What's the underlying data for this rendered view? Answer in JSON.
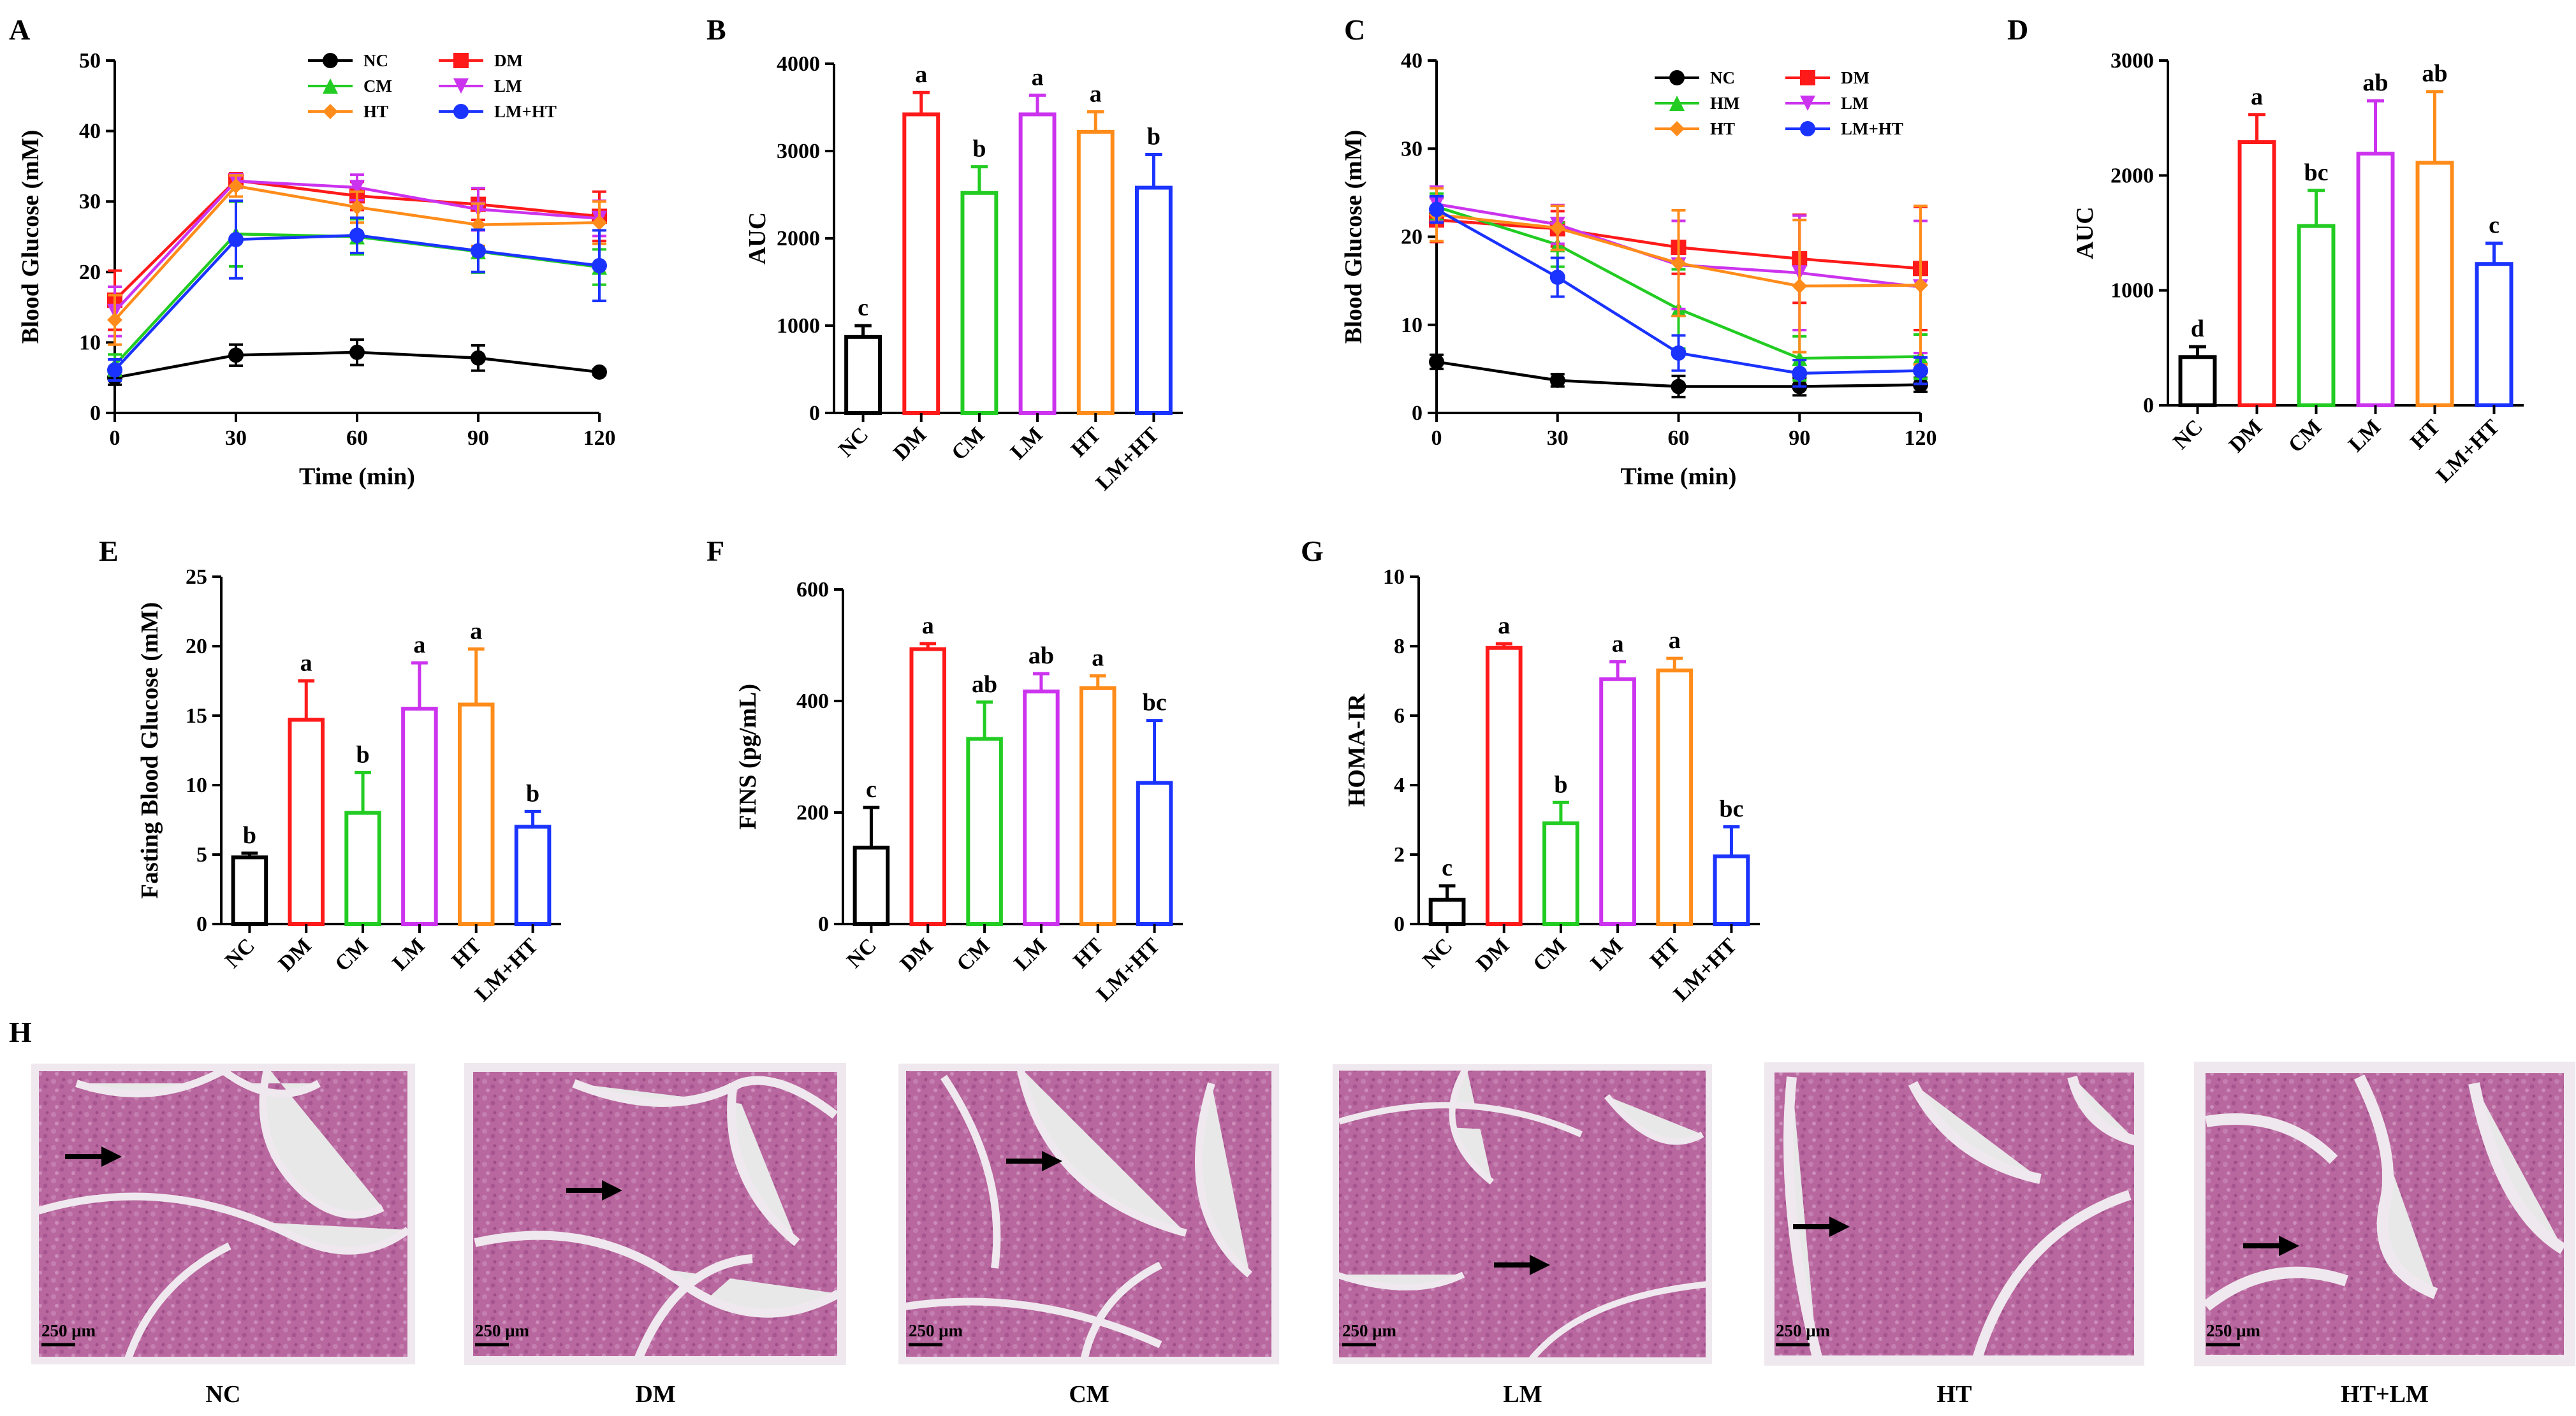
{
  "colors": {
    "NC": "#000000",
    "DM": "#ff1a1a",
    "CM": "#22cc22",
    "HM": "#22cc22",
    "LM": "#cc33ee",
    "HT": "#ff8c1a",
    "LM+HT": "#1a33ff",
    "tissue_bg": "#e8e8e8",
    "tissue": "#b0609a"
  },
  "chart_data": [
    {
      "panel": "A",
      "type": "line",
      "xlabel": "Time (min)",
      "ylabel": "Blood Glucose (mM)",
      "x": [
        0,
        30,
        60,
        90,
        120
      ],
      "xticks": [
        0,
        30,
        60,
        90,
        120
      ],
      "ylim": [
        0,
        50
      ],
      "yticks": [
        0,
        10,
        20,
        30,
        40,
        50
      ],
      "legend": "top-right",
      "series": [
        {
          "name": "NC",
          "key": "NC",
          "marker": "circle",
          "values": [
            5.0,
            8.2,
            8.6,
            7.8,
            5.8
          ],
          "err": [
            1.0,
            1.5,
            1.8,
            1.8,
            0.4
          ]
        },
        {
          "name": "DM",
          "key": "DM",
          "marker": "square",
          "values": [
            16.0,
            33.0,
            30.8,
            29.6,
            27.9
          ],
          "err": [
            4.2,
            1.0,
            2.0,
            2.2,
            3.5
          ]
        },
        {
          "name": "CM",
          "key": "CM",
          "marker": "triangle",
          "values": [
            6.8,
            25.4,
            25.0,
            22.9,
            20.7
          ],
          "err": [
            1.5,
            4.6,
            2.5,
            3.0,
            2.5
          ]
        },
        {
          "name": "LM",
          "key": "LM",
          "marker": "triangle-down",
          "values": [
            14.4,
            32.9,
            32.0,
            28.9,
            27.6
          ],
          "err": [
            3.5,
            1.0,
            1.8,
            3.0,
            2.5
          ]
        },
        {
          "name": "HT",
          "key": "HT",
          "marker": "diamond",
          "values": [
            13.2,
            32.2,
            29.2,
            26.7,
            27.0
          ],
          "err": [
            3.5,
            1.5,
            2.2,
            3.0,
            3.0
          ]
        },
        {
          "name": "LM+HT",
          "key": "LM+HT",
          "marker": "circle",
          "values": [
            6.1,
            24.6,
            25.2,
            23.0,
            20.9
          ],
          "err": [
            1.5,
            5.5,
            2.5,
            3.0,
            5.0
          ]
        }
      ]
    },
    {
      "panel": "B",
      "type": "bar",
      "ylabel": "AUC",
      "categories": [
        "NC",
        "DM",
        "CM",
        "LM",
        "HT",
        "LM+HT"
      ],
      "values": [
        870,
        3420,
        2520,
        3420,
        3220,
        2580
      ],
      "err": [
        130,
        250,
        300,
        220,
        230,
        380
      ],
      "sig": [
        "c",
        "a",
        "b",
        "a",
        "a",
        "b"
      ],
      "ylim": [
        0,
        4000
      ],
      "yticks": [
        0,
        1000,
        2000,
        3000,
        4000
      ]
    },
    {
      "panel": "C",
      "type": "line",
      "xlabel": "Time (min)",
      "ylabel": "Blood Glucose (mM)",
      "x": [
        0,
        30,
        60,
        90,
        120
      ],
      "xticks": [
        0,
        30,
        60,
        90,
        120
      ],
      "ylim": [
        0,
        40
      ],
      "yticks": [
        0,
        10,
        20,
        30,
        40
      ],
      "legend": "top-right",
      "series": [
        {
          "name": "NC",
          "key": "NC",
          "marker": "circle",
          "values": [
            5.8,
            3.7,
            3.0,
            3.0,
            3.2
          ],
          "err": [
            0.8,
            0.7,
            1.2,
            1.0,
            0.8
          ]
        },
        {
          "name": "DM",
          "key": "DM",
          "marker": "square",
          "values": [
            21.9,
            20.9,
            18.8,
            17.5,
            16.4
          ],
          "err": [
            2.5,
            2.0,
            3.0,
            5.0,
            7.0
          ]
        },
        {
          "name": "HM",
          "key": "HM",
          "marker": "triangle",
          "values": [
            23.4,
            19.1,
            11.8,
            6.2,
            6.4
          ],
          "err": [
            1.5,
            2.5,
            4.5,
            2.5,
            2.5
          ]
        },
        {
          "name": "LM",
          "key": "LM",
          "marker": "triangle-down",
          "values": [
            23.7,
            21.4,
            16.8,
            15.9,
            14.3
          ],
          "err": [
            2.0,
            2.2,
            5.0,
            6.5,
            7.5
          ]
        },
        {
          "name": "HT",
          "key": "HT",
          "marker": "diamond",
          "values": [
            22.5,
            21.0,
            17.0,
            14.4,
            14.5
          ],
          "err": [
            3.0,
            2.5,
            6.0,
            7.5,
            9.0
          ]
        },
        {
          "name": "LM+HT",
          "key": "LM+HT",
          "marker": "circle",
          "values": [
            23.1,
            15.4,
            6.8,
            4.5,
            4.8
          ],
          "err": [
            1.5,
            2.2,
            2.0,
            1.5,
            1.5
          ]
        }
      ]
    },
    {
      "panel": "D",
      "type": "bar",
      "ylabel": "AUC",
      "categories": [
        "NC",
        "DM",
        "CM",
        "LM",
        "HT",
        "LM+HT"
      ],
      "values": [
        420,
        2290,
        1560,
        2190,
        2110,
        1230
      ],
      "err": [
        90,
        240,
        310,
        460,
        620,
        180
      ],
      "sig": [
        "d",
        "a",
        "bc",
        "ab",
        "ab",
        "c"
      ],
      "ylim": [
        0,
        3000
      ],
      "yticks": [
        0,
        1000,
        2000,
        3000
      ]
    },
    {
      "panel": "E",
      "type": "bar",
      "ylabel": "Fasting Blood Glucose (mM)",
      "categories": [
        "NC",
        "DM",
        "CM",
        "LM",
        "HT",
        "LM+HT"
      ],
      "values": [
        4.8,
        14.7,
        8.0,
        15.5,
        15.8,
        7.0
      ],
      "err": [
        0.3,
        2.8,
        2.9,
        3.3,
        4.0,
        1.1
      ],
      "sig": [
        "b",
        "a",
        "b",
        "a",
        "a",
        "b"
      ],
      "ylim": [
        0,
        25
      ],
      "yticks": [
        0,
        5,
        10,
        15,
        20,
        25
      ]
    },
    {
      "panel": "F",
      "type": "bar",
      "ylabel": "FINS (pg/mL)",
      "categories": [
        "NC",
        "DM",
        "CM",
        "LM",
        "HT",
        "LM+HT"
      ],
      "values": [
        137,
        493,
        332,
        417,
        423,
        253
      ],
      "err": [
        72,
        10,
        66,
        32,
        22,
        112
      ],
      "sig": [
        "c",
        "a",
        "ab",
        "ab",
        "a",
        "bc"
      ],
      "ylim": [
        0,
        600
      ],
      "yticks": [
        0,
        200,
        400,
        600
      ]
    },
    {
      "panel": "G",
      "type": "bar",
      "ylabel": "HOMA-IR",
      "categories": [
        "NC",
        "DM",
        "CM",
        "LM",
        "HT",
        "LM+HT"
      ],
      "values": [
        0.7,
        7.95,
        2.9,
        7.05,
        7.3,
        1.95
      ],
      "err": [
        0.4,
        0.12,
        0.6,
        0.5,
        0.35,
        0.85
      ],
      "sig": [
        "c",
        "a",
        "b",
        "a",
        "a",
        "bc"
      ],
      "ylim": [
        0,
        10
      ],
      "yticks": [
        0,
        2,
        4,
        6,
        8,
        10
      ]
    }
  ],
  "histology": {
    "panel": "H",
    "captions": [
      "NC",
      "DM",
      "CM",
      "LM",
      "HT",
      "HT+LM"
    ],
    "scale_bar": "250 μm"
  }
}
